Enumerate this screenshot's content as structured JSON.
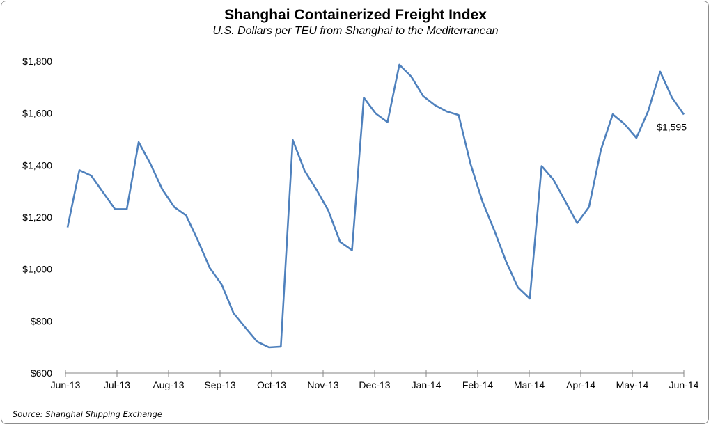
{
  "chart_data": {
    "type": "line",
    "title": "Shanghai Containerized Freight Index",
    "subtitle": "U.S. Dollars per TEU from Shanghai to the Mediterranean",
    "xlabel": "",
    "ylabel": "",
    "x_tick_labels": [
      "Jun-13",
      "Jul-13",
      "Aug-13",
      "Sep-13",
      "Oct-13",
      "Nov-13",
      "Dec-13",
      "Jan-14",
      "Feb-14",
      "Mar-14",
      "Apr-14",
      "May-14",
      "Jun-14"
    ],
    "y_tick_labels": [
      "$600",
      "$800",
      "$1,000",
      "$1,200",
      "$1,400",
      "$1,600",
      "$1,800"
    ],
    "ylim": [
      600,
      1800
    ],
    "grid": false,
    "legend": "none",
    "series": [
      {
        "color": "#4f81bd",
        "frequency": "weekly",
        "values": [
          1161,
          1381,
          1360,
          1295,
          1231,
          1231,
          1489,
          1405,
          1306,
          1239,
          1207,
          1110,
          1005,
          941,
          831,
          775,
          721,
          699,
          702,
          1497,
          1379,
          1306,
          1226,
          1105,
          1073,
          1660,
          1599,
          1566,
          1787,
          1741,
          1666,
          1631,
          1607,
          1593,
          1405,
          1261,
          1150,
          1030,
          930,
          887,
          1397,
          1344,
          1261,
          1177,
          1239,
          1459,
          1596,
          1558,
          1505,
          1609,
          1760,
          1660,
          1595
        ]
      }
    ],
    "annotations": [
      {
        "text": "$1,595"
      }
    ],
    "source": "Source: Shanghai Shipping Exchange"
  }
}
